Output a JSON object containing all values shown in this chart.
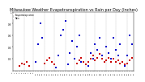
{
  "title": "Milwaukee Weather Evapotranspiration vs Rain per Day (Inches)",
  "title_fontsize": 3.5,
  "background_color": "#ffffff",
  "legend_labels": [
    "Evapotranspiration",
    "Rain"
  ],
  "legend_colors": [
    "#cc0000",
    "#0000cc"
  ],
  "ylim": [
    0.0,
    1.0
  ],
  "xlim": [
    0,
    53
  ],
  "ytick_values": [
    0.2,
    0.4,
    0.6,
    0.8,
    1.0
  ],
  "ytick_labels": [
    "0.2",
    "0.4",
    "0.6",
    "0.8",
    "1"
  ],
  "grid_positions": [
    5,
    9,
    14,
    18,
    23,
    27,
    32,
    36,
    41,
    45,
    50
  ],
  "rain_x": [
    10,
    11,
    12,
    13,
    19,
    20,
    21,
    22,
    23,
    24,
    25,
    26,
    27,
    28,
    29,
    30,
    33,
    34,
    35,
    36,
    37,
    38,
    39,
    40,
    41,
    42,
    43,
    44,
    45,
    46,
    47,
    48,
    49,
    50,
    51,
    52
  ],
  "rain_y": [
    0.15,
    0.45,
    0.8,
    0.55,
    0.05,
    0.25,
    0.6,
    0.7,
    0.85,
    0.1,
    0.3,
    0.5,
    0.2,
    0.4,
    0.6,
    0.15,
    0.08,
    0.3,
    0.2,
    0.45,
    0.35,
    0.55,
    0.25,
    0.15,
    0.4,
    0.3,
    0.2,
    0.55,
    0.35,
    0.25,
    0.45,
    0.15,
    0.08,
    0.25,
    0.6,
    0.45
  ],
  "et_x": [
    3,
    4,
    5,
    6,
    7,
    14,
    15,
    16,
    17,
    18,
    28,
    29,
    30,
    31,
    32,
    33,
    34,
    35,
    36,
    37,
    38,
    39,
    40,
    41,
    42,
    43,
    44,
    45,
    46,
    47,
    48,
    49,
    50,
    51,
    52
  ],
  "et_y": [
    0.08,
    0.12,
    0.1,
    0.15,
    0.08,
    0.12,
    0.18,
    0.22,
    0.15,
    0.1,
    0.12,
    0.18,
    0.22,
    0.15,
    0.1,
    0.15,
    0.2,
    0.25,
    0.18,
    0.22,
    0.28,
    0.2,
    0.15,
    0.18,
    0.22,
    0.15,
    0.2,
    0.15,
    0.18,
    0.12,
    0.15,
    0.1,
    0.12,
    0.18,
    0.22
  ]
}
